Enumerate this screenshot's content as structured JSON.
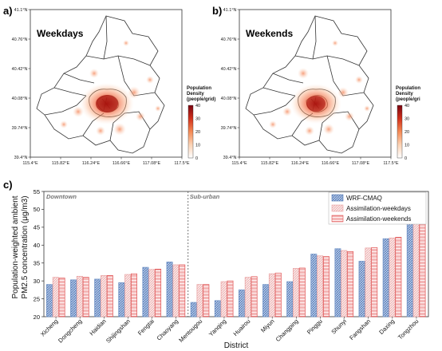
{
  "panels": {
    "a": {
      "letter": "a)",
      "title": "Weekdays",
      "lat_ticks": [
        "41.1°N",
        "40.76°N",
        "40.42°N",
        "40.08°N",
        "39.74°N",
        "39.4°N"
      ],
      "lon_ticks": [
        "115.4°E",
        "115.82°E",
        "116.24°E",
        "116.66°E",
        "117.08°E",
        "117.5°E"
      ],
      "colorbar": {
        "title_lines": [
          "Population",
          "Density",
          "(people/grid)"
        ],
        "ticks": [
          "40",
          "30",
          "20",
          "10",
          "0"
        ],
        "range": [
          0,
          40
        ]
      }
    },
    "b": {
      "letter": "b)",
      "title": "Weekends",
      "lat_ticks": [
        "41.1°N",
        "40.76°N",
        "40.42°N",
        "40.08°N",
        "39.74°N",
        "39.4°N"
      ],
      "lon_ticks": [
        "115.4°E",
        "115.82°E",
        "116.24°E",
        "116.66°E",
        "117.08°E",
        "117.5°E"
      ],
      "colorbar": {
        "title_lines": [
          "Population",
          "Density",
          "(people/gri"
        ],
        "ticks": [
          "40",
          "30",
          "20",
          "10",
          "0"
        ],
        "range": [
          0,
          40
        ]
      }
    }
  },
  "chart_data": {
    "type": "bar",
    "panel_letter": "c)",
    "xlabel": "District",
    "ylabel_line1": "Population-weighted ambient",
    "ylabel_line2": "PM2.5 concentration (μg/m3)",
    "ylim": [
      20,
      55
    ],
    "yticks": [
      20,
      25,
      30,
      35,
      40,
      45,
      50,
      55
    ],
    "region_labels": [
      "Downtown",
      "Sub-urban"
    ],
    "divider_after_index": 5,
    "categories": [
      "Xicheng",
      "Dongcheng",
      "Haidian",
      "Shijingshan",
      "Fengtai",
      "Chaoyang",
      "Mentougou",
      "Yanqing",
      "Huairou",
      "Miyun",
      "Changping",
      "Pinggu",
      "Shunyi",
      "Fangshan",
      "Daxing",
      "Tongzhou"
    ],
    "series": [
      {
        "name": "WRF-CMAQ",
        "values": [
          29.0,
          30.3,
          30.5,
          29.5,
          33.8,
          35.3,
          24.0,
          24.5,
          27.5,
          29.0,
          29.8,
          37.5,
          39.0,
          35.5,
          41.8,
          50.0
        ]
      },
      {
        "name": "Assimilation-weekdays",
        "values": [
          31.0,
          31.3,
          31.5,
          31.8,
          33.2,
          34.5,
          29.0,
          29.8,
          31.0,
          32.0,
          33.5,
          37.0,
          38.5,
          39.2,
          42.0,
          46.5
        ]
      },
      {
        "name": "Assimilation-weekends",
        "values": [
          30.8,
          31.0,
          31.5,
          32.0,
          33.3,
          34.5,
          29.0,
          30.0,
          31.2,
          32.2,
          33.6,
          36.8,
          38.2,
          39.3,
          42.2,
          46.6
        ]
      }
    ],
    "colors": {
      "WRF-CMAQ": "#6b8fc4",
      "Assimilation-weekdays": "#e8a0a0",
      "Assimilation-weekends": "#e05050"
    },
    "legend_position": "top-right",
    "grid": false
  }
}
